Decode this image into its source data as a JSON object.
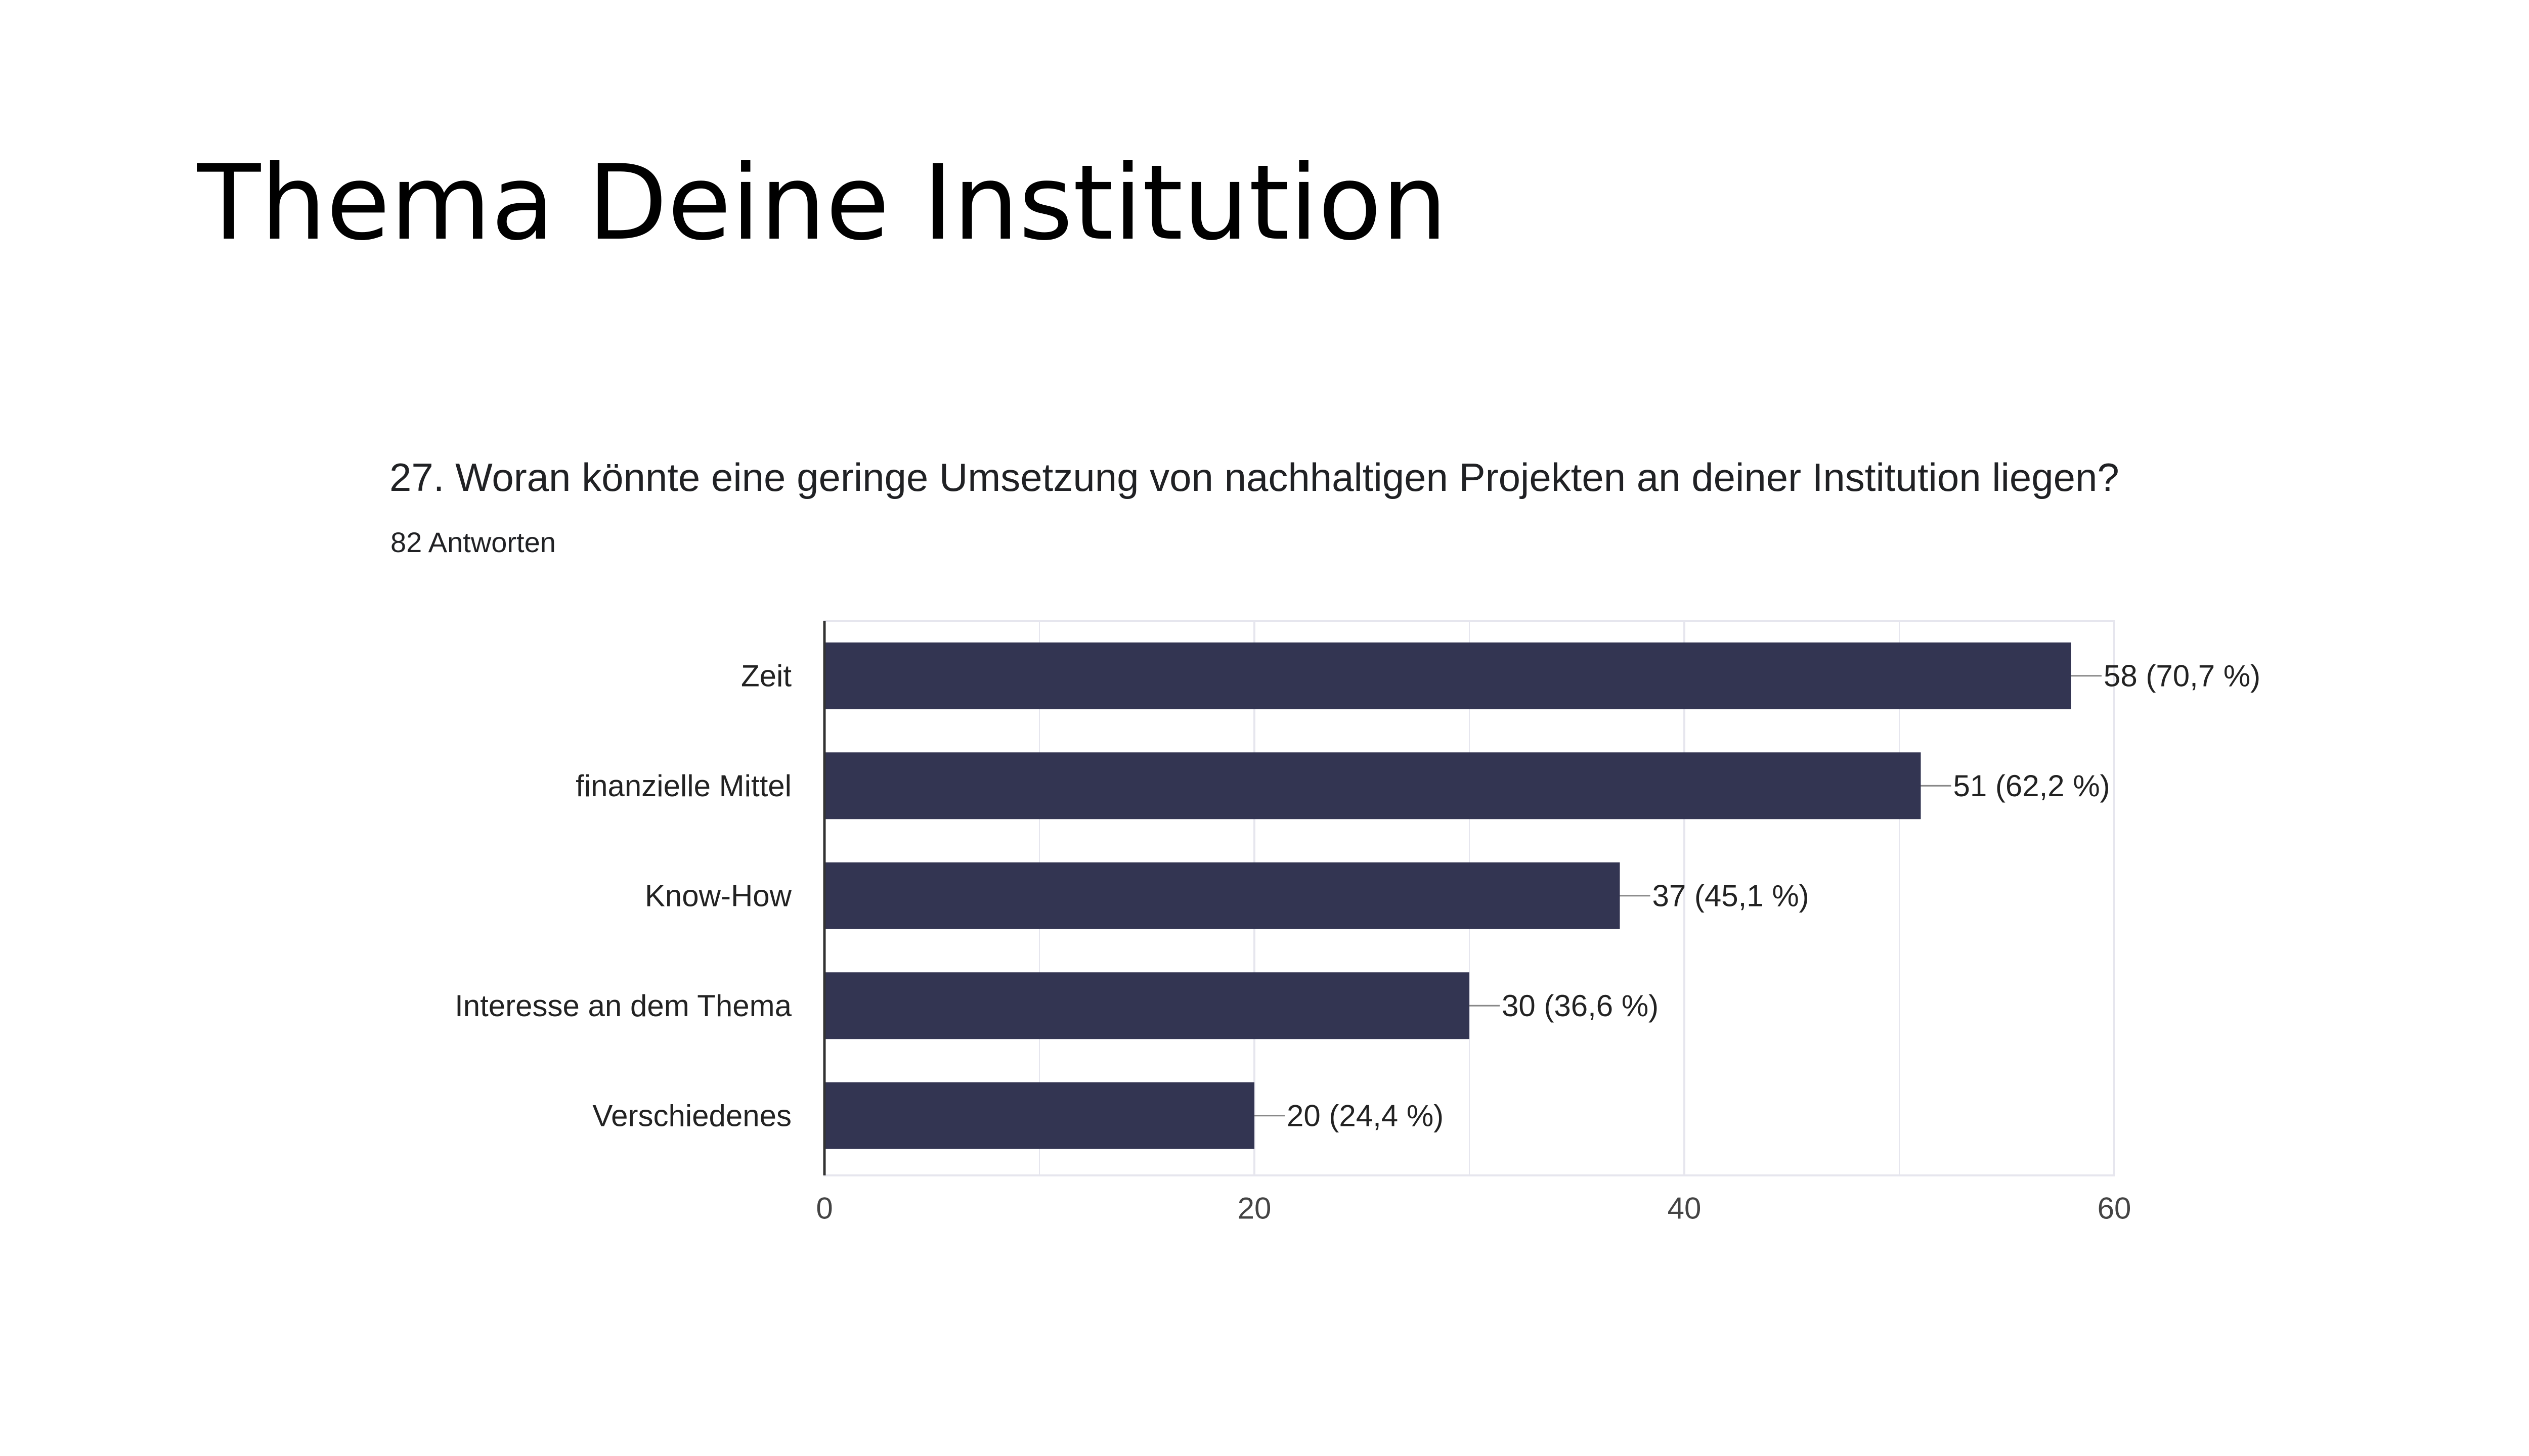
{
  "slide": {
    "title": "Thema Deine Institution"
  },
  "question": {
    "text": "27.  Woran könnte eine geringe Umsetzung von nachhaltigen Projekten an deiner Institution liegen?",
    "responses": "82 Antworten"
  },
  "colors": {
    "bar": "#333552",
    "grid": "#e6e6ee",
    "axis": "#333333",
    "label": "#222222",
    "tick": "#444444"
  },
  "chart_data": {
    "type": "bar",
    "orientation": "horizontal",
    "title": "",
    "xlabel": "",
    "ylabel": "",
    "categories": [
      "Zeit",
      "finanzielle Mittel",
      "Know-How",
      "Interesse an dem Thema",
      "Verschiedenes"
    ],
    "values": [
      58,
      51,
      37,
      30,
      20
    ],
    "data_labels": [
      "58 (70,7 %)",
      "51 (62,2 %)",
      "37 (45,1 %)",
      "30 (36,6 %)",
      "20 (24,4 %)"
    ],
    "xlim": [
      0,
      60
    ],
    "ticks": [
      0,
      20,
      40,
      60
    ],
    "tick_labels": [
      "0",
      "20",
      "40",
      "60"
    ],
    "grid": true,
    "legend": "none"
  }
}
